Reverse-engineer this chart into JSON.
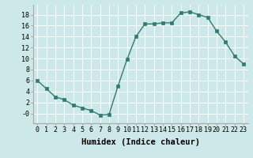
{
  "x": [
    0,
    1,
    2,
    3,
    4,
    5,
    6,
    7,
    8,
    9,
    10,
    11,
    12,
    13,
    14,
    15,
    16,
    17,
    18,
    19,
    20,
    21,
    22,
    23
  ],
  "y": [
    6,
    4.5,
    3,
    2.5,
    1.5,
    1,
    0.5,
    -0.3,
    -0.2,
    5,
    9.8,
    14,
    16.3,
    16.3,
    16.5,
    16.5,
    18.3,
    18.5,
    18,
    17.5,
    15,
    13,
    10.5,
    9
  ],
  "line_color": "#2e7d6e",
  "marker": "s",
  "markersize": 2.5,
  "linewidth": 1.0,
  "xlabel": "Humidex (Indice chaleur)",
  "xlim": [
    -0.5,
    23.5
  ],
  "ylim": [
    -1.8,
    19.8
  ],
  "yticks": [
    0,
    2,
    4,
    6,
    8,
    10,
    12,
    14,
    16,
    18
  ],
  "ytick_labels": [
    "-0",
    "2",
    "4",
    "6",
    "8",
    "10",
    "12",
    "14",
    "16",
    "18"
  ],
  "xticks": [
    0,
    1,
    2,
    3,
    4,
    5,
    6,
    7,
    8,
    9,
    10,
    11,
    12,
    13,
    14,
    15,
    16,
    17,
    18,
    19,
    20,
    21,
    22,
    23
  ],
  "bg_color": "#cce8e8",
  "grid_color": "#ffffff",
  "xlabel_fontsize": 7.5,
  "tick_fontsize": 6.0
}
